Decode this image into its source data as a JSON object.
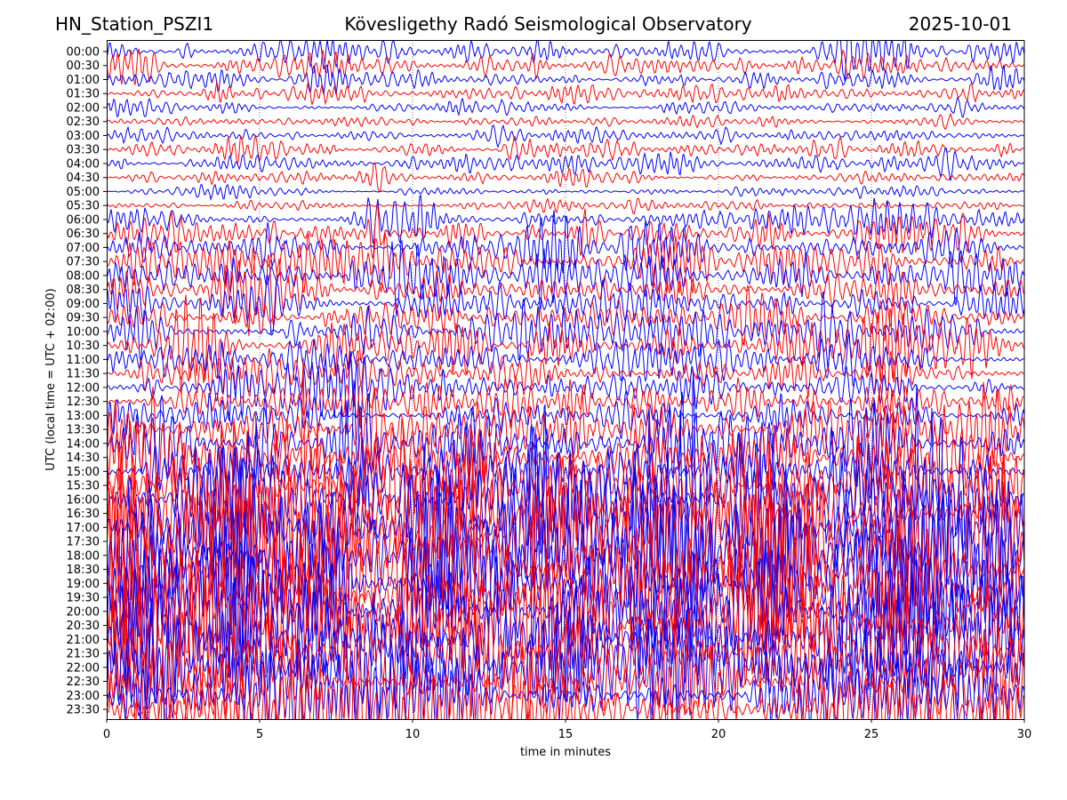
{
  "header": {
    "station": "HN_Station_PSZI1",
    "observatory": "Kövesligethy Radó Seismological Observatory",
    "date": "2025-10-01"
  },
  "chart_data": {
    "type": "line",
    "title": "Kövesligethy Radó Seismological Observatory",
    "xlabel": "time in minutes",
    "ylabel": "UTC (local time = UTC + 02:00)",
    "xlim": [
      0,
      30
    ],
    "xticks": [
      "0",
      "5",
      "10",
      "15",
      "20",
      "25",
      "30"
    ],
    "grid": "vertical dotted at 5-minute marks",
    "colors": [
      "#0000ff",
      "#ff0000"
    ],
    "traces": [
      {
        "label": "00:00",
        "amp": 3
      },
      {
        "label": "00:30",
        "amp": 3
      },
      {
        "label": "01:00",
        "amp": 2
      },
      {
        "label": "01:30",
        "amp": 2
      },
      {
        "label": "02:00",
        "amp": 1.5
      },
      {
        "label": "02:30",
        "amp": 1
      },
      {
        "label": "03:00",
        "amp": 1.5
      },
      {
        "label": "03:30",
        "amp": 2
      },
      {
        "label": "04:00",
        "amp": 2
      },
      {
        "label": "04:30",
        "amp": 1.5
      },
      {
        "label": "05:00",
        "amp": 1
      },
      {
        "label": "05:30",
        "amp": 1
      },
      {
        "label": "06:00",
        "amp": 3
      },
      {
        "label": "06:30",
        "amp": 4
      },
      {
        "label": "07:00",
        "amp": 4
      },
      {
        "label": "07:30",
        "amp": 5
      },
      {
        "label": "08:00",
        "amp": 5
      },
      {
        "label": "08:30",
        "amp": 4
      },
      {
        "label": "09:00",
        "amp": 4
      },
      {
        "label": "09:30",
        "amp": 4
      },
      {
        "label": "10:00",
        "amp": 5
      },
      {
        "label": "10:30",
        "amp": 6
      },
      {
        "label": "11:00",
        "amp": 4
      },
      {
        "label": "11:30",
        "amp": 4
      },
      {
        "label": "12:00",
        "amp": 5
      },
      {
        "label": "12:30",
        "amp": 4
      },
      {
        "label": "13:00",
        "amp": 4
      },
      {
        "label": "13:30",
        "amp": 7
      },
      {
        "label": "14:00",
        "amp": 8
      },
      {
        "label": "14:30",
        "amp": 8
      },
      {
        "label": "15:00",
        "amp": 7
      },
      {
        "label": "15:30",
        "amp": 10
      },
      {
        "label": "16:00",
        "amp": 14
      },
      {
        "label": "16:30",
        "amp": 16
      },
      {
        "label": "17:00",
        "amp": 18
      },
      {
        "label": "17:30",
        "amp": 18
      },
      {
        "label": "18:00",
        "amp": 16
      },
      {
        "label": "18:30",
        "amp": 16
      },
      {
        "label": "19:00",
        "amp": 15
      },
      {
        "label": "19:30",
        "amp": 16
      },
      {
        "label": "20:00",
        "amp": 15
      },
      {
        "label": "20:30",
        "amp": 16
      },
      {
        "label": "21:00",
        "amp": 15
      },
      {
        "label": "21:30",
        "amp": 14
      },
      {
        "label": "22:00",
        "amp": 12
      },
      {
        "label": "22:30",
        "amp": 10
      },
      {
        "label": "23:00",
        "amp": 10
      },
      {
        "label": "23:30",
        "amp": 9
      }
    ]
  }
}
